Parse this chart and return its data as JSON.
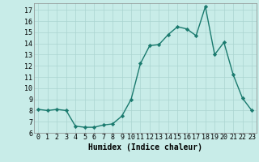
{
  "x": [
    0,
    1,
    2,
    3,
    4,
    5,
    6,
    7,
    8,
    9,
    10,
    11,
    12,
    13,
    14,
    15,
    16,
    17,
    18,
    19,
    20,
    21,
    22,
    23
  ],
  "y": [
    8.1,
    8.0,
    8.1,
    8.0,
    6.6,
    6.5,
    6.5,
    6.7,
    6.8,
    7.5,
    9.0,
    12.2,
    13.8,
    13.9,
    14.8,
    15.5,
    15.3,
    14.7,
    17.3,
    13.0,
    14.1,
    11.2,
    9.1,
    8.0
  ],
  "line_color": "#1a7a6e",
  "marker": "D",
  "markersize": 2.2,
  "linewidth": 1.0,
  "bg_color": "#c8ece8",
  "grid_color": "#aad4d0",
  "xlabel": "Humidex (Indice chaleur)",
  "xlabel_fontsize": 7,
  "tick_fontsize": 6,
  "ylim": [
    6,
    17.6
  ],
  "yticks": [
    6,
    7,
    8,
    9,
    10,
    11,
    12,
    13,
    14,
    15,
    16,
    17
  ],
  "xlim": [
    -0.5,
    23.5
  ],
  "xticks": [
    0,
    1,
    2,
    3,
    4,
    5,
    6,
    7,
    8,
    9,
    10,
    11,
    12,
    13,
    14,
    15,
    16,
    17,
    18,
    19,
    20,
    21,
    22,
    23
  ]
}
